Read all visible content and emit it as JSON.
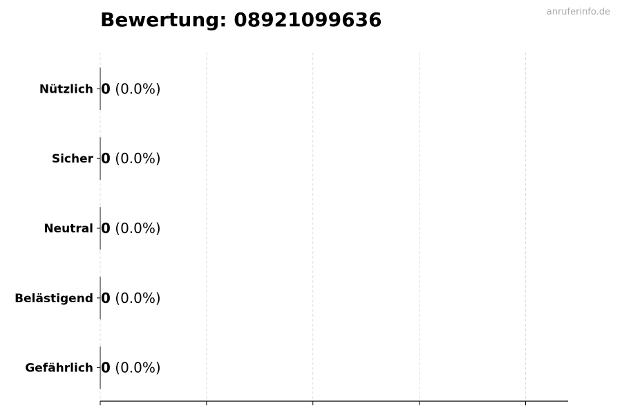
{
  "title": "Bewertung: 08921099636",
  "watermark": "anruferinfo.de",
  "chart_data": {
    "type": "bar",
    "orientation": "horizontal",
    "title": "Bewertung: 08921099636",
    "categories": [
      "Nützlich",
      "Sicher",
      "Neutral",
      "Belästigend",
      "Gefährlich"
    ],
    "values": [
      0,
      0,
      0,
      0,
      0
    ],
    "labels": [
      {
        "count": "0",
        "percent": "(0.0%)"
      },
      {
        "count": "0",
        "percent": "(0.0%)"
      },
      {
        "count": "0",
        "percent": "(0.0%)"
      },
      {
        "count": "0",
        "percent": "(0.0%)"
      },
      {
        "count": "0",
        "percent": "(0.0%)"
      }
    ],
    "xlim": [
      0,
      4.4
    ],
    "xticks": [
      0,
      1,
      2,
      3,
      4
    ],
    "xtick_labels_shown": false,
    "grid": "x dashed",
    "xlabel": "",
    "ylabel": "",
    "colors": {
      "grid": "#dddddd",
      "axis": "#000000",
      "bar_edge": "#333333"
    }
  }
}
